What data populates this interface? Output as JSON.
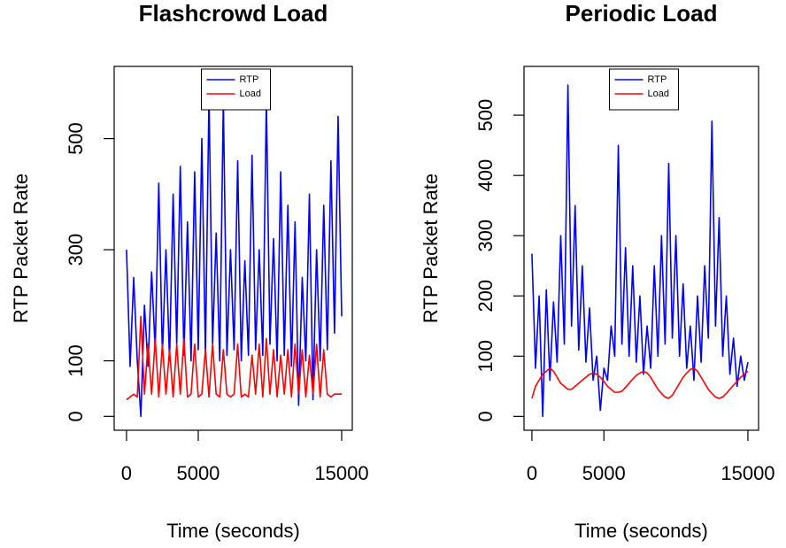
{
  "chart_data": [
    {
      "type": "line",
      "title": "Flashcrowd Load",
      "x_label": "Time (seconds)",
      "y_label": "RTP Packet Rate",
      "x": [
        0,
        250,
        500,
        750,
        1000,
        1250,
        1500,
        1750,
        2000,
        2250,
        2500,
        2750,
        3000,
        3250,
        3500,
        3750,
        4000,
        4250,
        4500,
        4750,
        5000,
        5250,
        5500,
        5750,
        6000,
        6250,
        6500,
        6750,
        7000,
        7250,
        7500,
        7750,
        8000,
        8250,
        8500,
        8750,
        9000,
        9250,
        9500,
        9750,
        10000,
        10250,
        10500,
        10750,
        11000,
        11250,
        11500,
        11750,
        12000,
        12250,
        12500,
        12750,
        13000,
        13250,
        13500,
        13750,
        14000,
        14250,
        14500,
        14750,
        15000
      ],
      "series": [
        {
          "name": "RTP",
          "color": "#0000ff",
          "values": [
            300,
            90,
            250,
            100,
            0,
            200,
            90,
            260,
            120,
            420,
            110,
            300,
            100,
            400,
            130,
            450,
            110,
            350,
            100,
            440,
            120,
            500,
            110,
            580,
            130,
            330,
            100,
            570,
            110,
            300,
            120,
            460,
            100,
            280,
            110,
            470,
            120,
            300,
            110,
            570,
            130,
            320,
            100,
            440,
            110,
            380,
            90,
            350,
            20,
            250,
            100,
            400,
            30,
            300,
            100,
            380,
            120,
            460,
            150,
            540,
            180
          ]
        },
        {
          "name": "Load",
          "color": "#ff0000",
          "values": [
            30,
            35,
            40,
            35,
            180,
            40,
            130,
            40,
            140,
            35,
            130,
            40,
            120,
            35,
            130,
            40,
            140,
            35,
            40,
            130,
            35,
            40,
            120,
            35,
            130,
            40,
            35,
            120,
            40,
            35,
            40,
            130,
            35,
            40,
            35,
            110,
            40,
            130,
            35,
            140,
            40,
            120,
            35,
            110,
            40,
            120,
            35,
            130,
            40,
            120,
            35,
            110,
            40,
            130,
            35,
            120,
            40,
            35,
            40,
            40,
            40
          ]
        }
      ],
      "xlim": [
        -860,
        15740
      ],
      "ylim": [
        -25,
        630
      ],
      "xticks": [
        0,
        5000,
        15000
      ],
      "yticks": [
        0,
        100,
        300,
        500
      ],
      "legend": "top"
    },
    {
      "type": "line",
      "title": "Periodic Load",
      "x_label": "Time (seconds)",
      "y_label": "RTP Packet Rate",
      "x": [
        0,
        250,
        500,
        750,
        1000,
        1250,
        1500,
        1750,
        2000,
        2250,
        2500,
        2750,
        3000,
        3250,
        3500,
        3750,
        4000,
        4250,
        4500,
        4750,
        5000,
        5250,
        5500,
        5750,
        6000,
        6250,
        6500,
        6750,
        7000,
        7250,
        7500,
        7750,
        8000,
        8250,
        8500,
        8750,
        9000,
        9250,
        9500,
        9750,
        10000,
        10250,
        10500,
        10750,
        11000,
        11250,
        11500,
        11750,
        12000,
        12250,
        12500,
        12750,
        13000,
        13250,
        13500,
        13750,
        14000,
        14250,
        14500,
        14750,
        15000
      ],
      "series": [
        {
          "name": "RTP",
          "color": "#0000ff",
          "values": [
            270,
            80,
            200,
            0,
            210,
            60,
            190,
            90,
            300,
            120,
            550,
            150,
            350,
            110,
            250,
            90,
            180,
            60,
            100,
            10,
            80,
            60,
            150,
            100,
            450,
            120,
            280,
            100,
            250,
            90,
            200,
            70,
            150,
            80,
            250,
            100,
            300,
            120,
            420,
            130,
            300,
            100,
            220,
            80,
            150,
            60,
            200,
            90,
            250,
            130,
            490,
            150,
            330,
            100,
            200,
            70,
            130,
            50,
            100,
            60,
            90
          ]
        },
        {
          "name": "Load",
          "color": "#ff0000",
          "values": [
            30,
            50,
            60,
            70,
            75,
            80,
            75,
            65,
            55,
            50,
            45,
            45,
            50,
            55,
            60,
            65,
            70,
            72,
            70,
            65,
            58,
            50,
            45,
            40,
            40,
            42,
            48,
            55,
            62,
            68,
            72,
            75,
            72,
            65,
            55,
            45,
            38,
            32,
            30,
            35,
            45,
            55,
            65,
            72,
            78,
            80,
            75,
            65,
            55,
            45,
            38,
            32,
            30,
            32,
            38,
            45,
            52,
            58,
            65,
            70,
            75
          ]
        }
      ],
      "xlim": [
        -550,
        15740
      ],
      "ylim": [
        -23,
        581
      ],
      "xticks": [
        0,
        5000,
        15000
      ],
      "yticks": [
        0,
        100,
        200,
        300,
        400,
        500
      ],
      "legend": "top"
    }
  ]
}
